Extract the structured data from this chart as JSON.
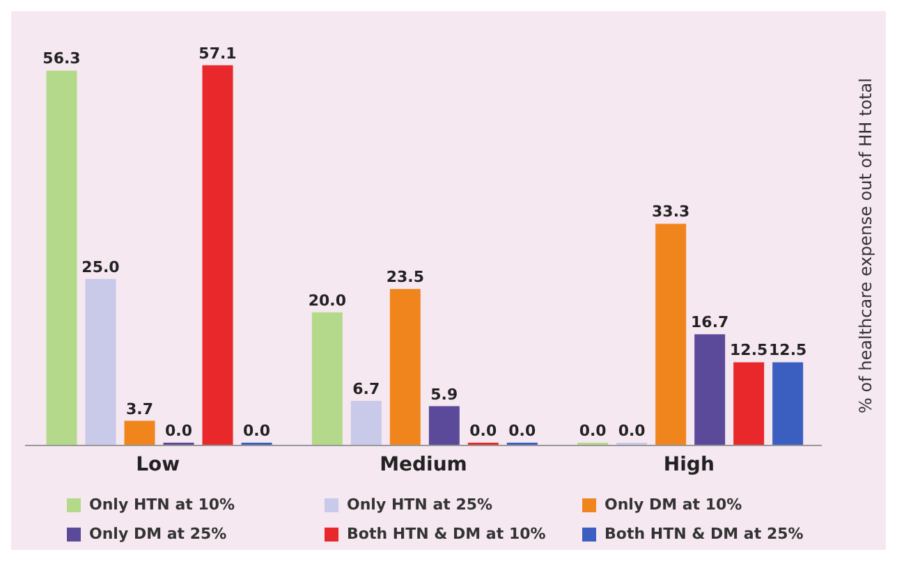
{
  "chart_data": {
    "type": "bar",
    "ylabel": "% of healthcare expense out of HH total",
    "categories": [
      "Low",
      "Medium",
      "High"
    ],
    "legend": "bottom",
    "grid": false,
    "series": [
      {
        "name": "Only HTN at 10%",
        "color": "#b5d98a",
        "values": [
          56.3,
          20.0,
          0.0
        ],
        "value_labels": [
          "56.3",
          "20.0",
          "0.0"
        ]
      },
      {
        "name": "Only HTN at 25%",
        "color": "#c9c9ea",
        "values": [
          25.0,
          6.7,
          0.0
        ],
        "value_labels": [
          "25.0",
          "6.7",
          "0.0"
        ]
      },
      {
        "name": "Only DM at 10%",
        "color": "#f0851e",
        "values": [
          3.7,
          23.5,
          33.3
        ],
        "value_labels": [
          "3.7",
          "23.5",
          "33.3"
        ]
      },
      {
        "name": "Only DM at 25%",
        "color": "#5b4a9a",
        "values": [
          0.0,
          5.9,
          16.7
        ],
        "value_labels": [
          "0.0",
          "5.9",
          "16.7"
        ]
      },
      {
        "name": "Both HTN & DM at 10%",
        "color": "#e8282a",
        "values": [
          57.1,
          0.0,
          12.5
        ],
        "value_labels": [
          "57.1",
          "0.0",
          "12.5"
        ]
      },
      {
        "name": "Both HTN & DM at 25%",
        "color": "#3a5fc0",
        "values": [
          0.0,
          0.0,
          12.5
        ],
        "value_labels": [
          "0.0",
          "0.0",
          "12.5"
        ]
      }
    ]
  }
}
